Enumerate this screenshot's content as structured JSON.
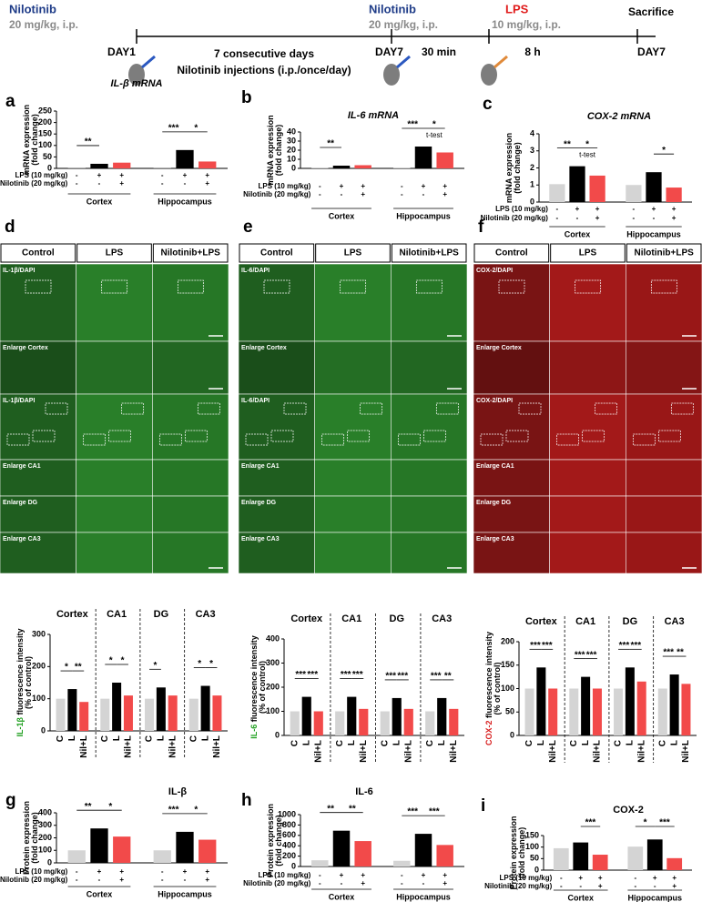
{
  "timeline": {
    "start": {
      "drug": "Nilotinib",
      "dose": "20 mg/kg, i.p.",
      "day": "DAY1"
    },
    "middle": {
      "line1": "7 consecutive days",
      "line2": "Nilotinib injections (i.p./once/day)"
    },
    "second": {
      "drug": "Nilotinib",
      "dose": "20 mg/kg, i.p.",
      "day": "DAY7"
    },
    "lps": {
      "drug": "LPS",
      "dose": "10 mg/kg, i.p."
    },
    "interval1": "30 min",
    "interval2": "8 h",
    "end": {
      "label": "Sacrifice",
      "day": "DAY7"
    }
  },
  "images": {
    "headers": [
      "Control",
      "LPS",
      "Nilotinib+LPS"
    ],
    "panels": [
      {
        "letter": "d",
        "color": "#35a835",
        "rows": [
          "IL-1β/DAPI",
          "Enlarge Cortex",
          "IL-1β/DAPI",
          "Enlarge CA1",
          "Enlarge DG",
          "Enlarge CA3"
        ]
      },
      {
        "letter": "e",
        "color": "#35a835",
        "rows": [
          "IL-6/DAPI",
          "Enlarge Cortex",
          "IL-6/DAPI",
          "Enlarge CA1",
          "Enlarge DG",
          "Enlarge CA3"
        ]
      },
      {
        "letter": "f",
        "color": "#d82020",
        "rows": [
          "COX-2/DAPI",
          "Enlarge Cortex",
          "COX-2/DAPI",
          "Enlarge CA1",
          "Enlarge DG",
          "Enlarge CA3"
        ]
      }
    ]
  },
  "chart_data": [
    {
      "type": "bar",
      "letter": "a",
      "title": "IL-β mRNA",
      "ylabel": [
        [
          {
            "text": "mRNA expression"
          }
        ],
        [
          {
            "text": "(fold change)"
          }
        ]
      ],
      "groups": [
        "Cortex",
        "Hippocampus"
      ],
      "group_position": "bottom",
      "values": [
        [
          1,
          20,
          25
        ],
        [
          1,
          80,
          30
        ]
      ],
      "colors": [
        "#d4d4d4",
        "#000000",
        "#f24a4a"
      ],
      "rows": [
        {
          "label": "LPS (10 mg/kg)",
          "signs": [
            "-",
            "+",
            "+",
            "-",
            "+",
            "+"
          ]
        },
        {
          "label": "Nilotinib (20 mg/kg)",
          "signs": [
            "-",
            "-",
            "+",
            "-",
            "-",
            "+"
          ]
        }
      ],
      "ylim": [
        0,
        250
      ],
      "yticks": [
        0,
        50,
        100,
        150,
        200,
        250
      ],
      "annotations": [
        {
          "text": "**",
          "from": 0,
          "to": 1
        },
        {
          "text": "***",
          "from": 3,
          "to": 4
        },
        {
          "text": "*",
          "from": 4,
          "to": 5
        }
      ]
    },
    {
      "type": "bar",
      "letter": "b",
      "title": "IL-6 mRNA",
      "ylabel": [
        [
          {
            "text": "mRNA expression"
          }
        ],
        [
          {
            "text": "(fold change)"
          }
        ]
      ],
      "groups": [
        "Cortex",
        "Hippocampus"
      ],
      "group_position": "bottom",
      "values": [
        [
          1,
          3,
          3.5
        ],
        [
          1,
          24,
          17.5
        ]
      ],
      "colors": [
        "#d4d4d4",
        "#000000",
        "#f24a4a"
      ],
      "rows": [
        {
          "label": "LPS (10 mg/kg)",
          "signs": [
            "-",
            "+",
            "+",
            "-",
            "+",
            "+"
          ]
        },
        {
          "label": "Nilotinib (20 mg/kg)",
          "signs": [
            "-",
            "-",
            "+",
            "-",
            "-",
            "+"
          ]
        }
      ],
      "ylim": [
        0,
        40
      ],
      "yticks": [
        0,
        10,
        20,
        30,
        40
      ],
      "annotations": [
        {
          "text": "**",
          "from": 0,
          "to": 1
        },
        {
          "text": "***",
          "from": 3,
          "to": 4
        },
        {
          "text": "*",
          "from": 4,
          "to": 5
        },
        {
          "text": "t-test",
          "from": 4,
          "to": 5
        }
      ]
    },
    {
      "type": "bar",
      "letter": "c",
      "title": "COX-2 mRNA",
      "ylabel": [
        [
          {
            "text": "mRNA expression"
          }
        ],
        [
          {
            "text": "(fold change)"
          }
        ]
      ],
      "groups": [
        "Cortex",
        "Hippocampus"
      ],
      "group_position": "bottom",
      "values": [
        [
          1.05,
          2.1,
          1.55
        ],
        [
          1.0,
          1.75,
          0.85
        ]
      ],
      "colors": [
        "#d4d4d4",
        "#000000",
        "#f24a4a"
      ],
      "rows": [
        {
          "label": "LPS (10 mg/kg)",
          "signs": [
            "-",
            "+",
            "+",
            "-",
            "+",
            "+"
          ]
        },
        {
          "label": "Nilotinib (20 mg/kg)",
          "signs": [
            "-",
            "-",
            "+",
            "-",
            "-",
            "+"
          ]
        }
      ],
      "ylim": [
        0,
        4
      ],
      "yticks": [
        0,
        1,
        2,
        3,
        4
      ],
      "annotations": [
        {
          "text": "**",
          "from": 0,
          "to": 1
        },
        {
          "text": "*",
          "from": 1,
          "to": 2
        },
        {
          "text": "t-test",
          "from": 1,
          "to": 2
        },
        {
          "text": "*",
          "from": 4,
          "to": 5
        }
      ]
    },
    {
      "type": "bar",
      "ylabel": [
        [
          {
            "text": "IL-1β",
            "color": "#1e9e1e"
          },
          {
            "text": " fluorescence intensity"
          }
        ],
        [
          {
            "text": "(% of control)"
          }
        ]
      ],
      "groups": [
        "Cortex",
        "CA1",
        "DG",
        "CA3"
      ],
      "group_position": "top",
      "categories": [
        "C",
        "L",
        "Nil+L"
      ],
      "values": [
        [
          100,
          130,
          90
        ],
        [
          100,
          150,
          110
        ],
        [
          100,
          135,
          110
        ],
        [
          100,
          140,
          110
        ]
      ],
      "colors": [
        "#d4d4d4",
        "#000000",
        "#f24a4a"
      ],
      "ylim": [
        0,
        300
      ],
      "yticks": [
        0,
        100,
        200,
        300
      ],
      "annotations": [
        {
          "text": "*",
          "from": 0,
          "to": 1
        },
        {
          "text": "**",
          "from": 1,
          "to": 2
        },
        {
          "text": "*",
          "from": 3,
          "to": 4
        },
        {
          "text": "*",
          "from": 4,
          "to": 5
        },
        {
          "text": "*",
          "from": 6,
          "to": 7
        },
        {
          "text": "*",
          "from": 9,
          "to": 10
        },
        {
          "text": "*",
          "from": 10,
          "to": 11
        }
      ]
    },
    {
      "type": "bar",
      "ylabel": [
        [
          {
            "text": "IL-6",
            "color": "#1e9e1e"
          },
          {
            "text": " fluorescence intensity"
          }
        ],
        [
          {
            "text": "(% of control)"
          }
        ]
      ],
      "groups": [
        "Cortex",
        "CA1",
        "DG",
        "CA3"
      ],
      "group_position": "top",
      "categories": [
        "C",
        "L",
        "Nil+L"
      ],
      "values": [
        [
          100,
          160,
          100
        ],
        [
          100,
          160,
          110
        ],
        [
          100,
          155,
          110
        ],
        [
          100,
          155,
          110
        ]
      ],
      "colors": [
        "#d4d4d4",
        "#000000",
        "#f24a4a"
      ],
      "ylim": [
        0,
        400
      ],
      "yticks": [
        0,
        100,
        200,
        300,
        400
      ],
      "annotations": [
        {
          "text": "***",
          "from": 0,
          "to": 1
        },
        {
          "text": "***",
          "from": 1,
          "to": 2
        },
        {
          "text": "***",
          "from": 3,
          "to": 4
        },
        {
          "text": "***",
          "from": 4,
          "to": 5
        },
        {
          "text": "***",
          "from": 6,
          "to": 7
        },
        {
          "text": "***",
          "from": 7,
          "to": 8
        },
        {
          "text": "***",
          "from": 9,
          "to": 10
        },
        {
          "text": "**",
          "from": 10,
          "to": 11
        }
      ]
    },
    {
      "type": "bar",
      "ylabel": [
        [
          {
            "text": "COX-2",
            "color": "#d82020"
          },
          {
            "text": " fluorescence intensity"
          }
        ],
        [
          {
            "text": "(% of control)"
          }
        ]
      ],
      "groups": [
        "Cortex",
        "CA1",
        "DG",
        "CA3"
      ],
      "group_position": "top",
      "categories": [
        "C",
        "L",
        "Nil+L"
      ],
      "values": [
        [
          100,
          145,
          100
        ],
        [
          100,
          125,
          100
        ],
        [
          100,
          145,
          115
        ],
        [
          100,
          130,
          110
        ]
      ],
      "colors": [
        "#d4d4d4",
        "#000000",
        "#f24a4a"
      ],
      "ylim": [
        0,
        200
      ],
      "yticks": [
        0,
        50,
        100,
        150,
        200
      ],
      "annotations": [
        {
          "text": "***",
          "from": 0,
          "to": 1
        },
        {
          "text": "***",
          "from": 1,
          "to": 2
        },
        {
          "text": "***",
          "from": 3,
          "to": 4
        },
        {
          "text": "***",
          "from": 4,
          "to": 5
        },
        {
          "text": "***",
          "from": 6,
          "to": 7
        },
        {
          "text": "***",
          "from": 7,
          "to": 8
        },
        {
          "text": "***",
          "from": 9,
          "to": 10
        },
        {
          "text": "**",
          "from": 10,
          "to": 11
        }
      ]
    },
    {
      "type": "bar",
      "letter": "g",
      "title": "IL-β",
      "ylabel": [
        [
          {
            "text": "Protein expression"
          }
        ],
        [
          {
            "text": "(fold change)"
          }
        ]
      ],
      "groups": [
        "Cortex",
        "Hippocampus"
      ],
      "group_position": "bottom",
      "values": [
        [
          100,
          275,
          210
        ],
        [
          100,
          248,
          185
        ]
      ],
      "colors": [
        "#d4d4d4",
        "#000000",
        "#f24a4a"
      ],
      "rows": [
        {
          "label": "LPS (10 mg/kg)",
          "signs": [
            "-",
            "+",
            "+",
            "-",
            "+",
            "+"
          ]
        },
        {
          "label": "Nilotinib (20 mg/kg)",
          "signs": [
            "-",
            "-",
            "+",
            "-",
            "-",
            "+"
          ]
        }
      ],
      "ylim": [
        0,
        400
      ],
      "yticks": [
        0,
        100,
        200,
        300,
        400
      ],
      "annotations": [
        {
          "text": "**",
          "from": 0,
          "to": 1
        },
        {
          "text": "*",
          "from": 1,
          "to": 2
        },
        {
          "text": "***",
          "from": 3,
          "to": 4
        },
        {
          "text": "*",
          "from": 4,
          "to": 5
        }
      ]
    },
    {
      "type": "bar",
      "letter": "h",
      "title": "IL-6",
      "ylabel": [
        [
          {
            "text": "Protein expression"
          }
        ],
        [
          {
            "text": "(fold change)"
          }
        ]
      ],
      "groups": [
        "Cortex",
        "Hippocampus"
      ],
      "group_position": "bottom",
      "values": [
        [
          120,
          690,
          490
        ],
        [
          110,
          630,
          415
        ]
      ],
      "colors": [
        "#d4d4d4",
        "#000000",
        "#f24a4a"
      ],
      "rows": [
        {
          "label": "LPS (10 mg/kg)",
          "signs": [
            "-",
            "+",
            "+",
            "-",
            "+",
            "+"
          ]
        },
        {
          "label": "Nilotinib (20 mg/kg)",
          "signs": [
            "-",
            "-",
            "+",
            "-",
            "-",
            "+"
          ]
        }
      ],
      "ylim": [
        0,
        1000
      ],
      "yticks": [
        0,
        200,
        400,
        600,
        800,
        1000
      ],
      "annotations": [
        {
          "text": "**",
          "from": 0,
          "to": 1
        },
        {
          "text": "**",
          "from": 1,
          "to": 2
        },
        {
          "text": "***",
          "from": 3,
          "to": 4
        },
        {
          "text": "***",
          "from": 4,
          "to": 5
        }
      ]
    },
    {
      "type": "bar",
      "letter": "i",
      "title": "COX-2",
      "ylabel": [
        [
          {
            "text": "Protein expression"
          }
        ],
        [
          {
            "text": "(fold change)"
          }
        ]
      ],
      "groups": [
        "Cortex",
        "Hippocampus"
      ],
      "group_position": "bottom",
      "values": [
        [
          95,
          120,
          67
        ],
        [
          102,
          133,
          52
        ]
      ],
      "colors": [
        "#d4d4d4",
        "#000000",
        "#f24a4a"
      ],
      "rows": [
        {
          "label": "LPS (10 mg/kg)",
          "signs": [
            "-",
            "+",
            "+",
            "-",
            "+",
            "+"
          ]
        },
        {
          "label": "Nilotinib (20 mg/kg)",
          "signs": [
            "-",
            "-",
            "+",
            "-",
            "-",
            "+"
          ]
        }
      ],
      "ylim": [
        0,
        150
      ],
      "yticks": [
        0,
        50,
        100,
        150
      ],
      "annotations": [
        {
          "text": "***",
          "from": 1,
          "to": 2
        },
        {
          "text": "*",
          "from": 3,
          "to": 4
        },
        {
          "text": "***",
          "from": 4,
          "to": 5
        }
      ]
    }
  ]
}
